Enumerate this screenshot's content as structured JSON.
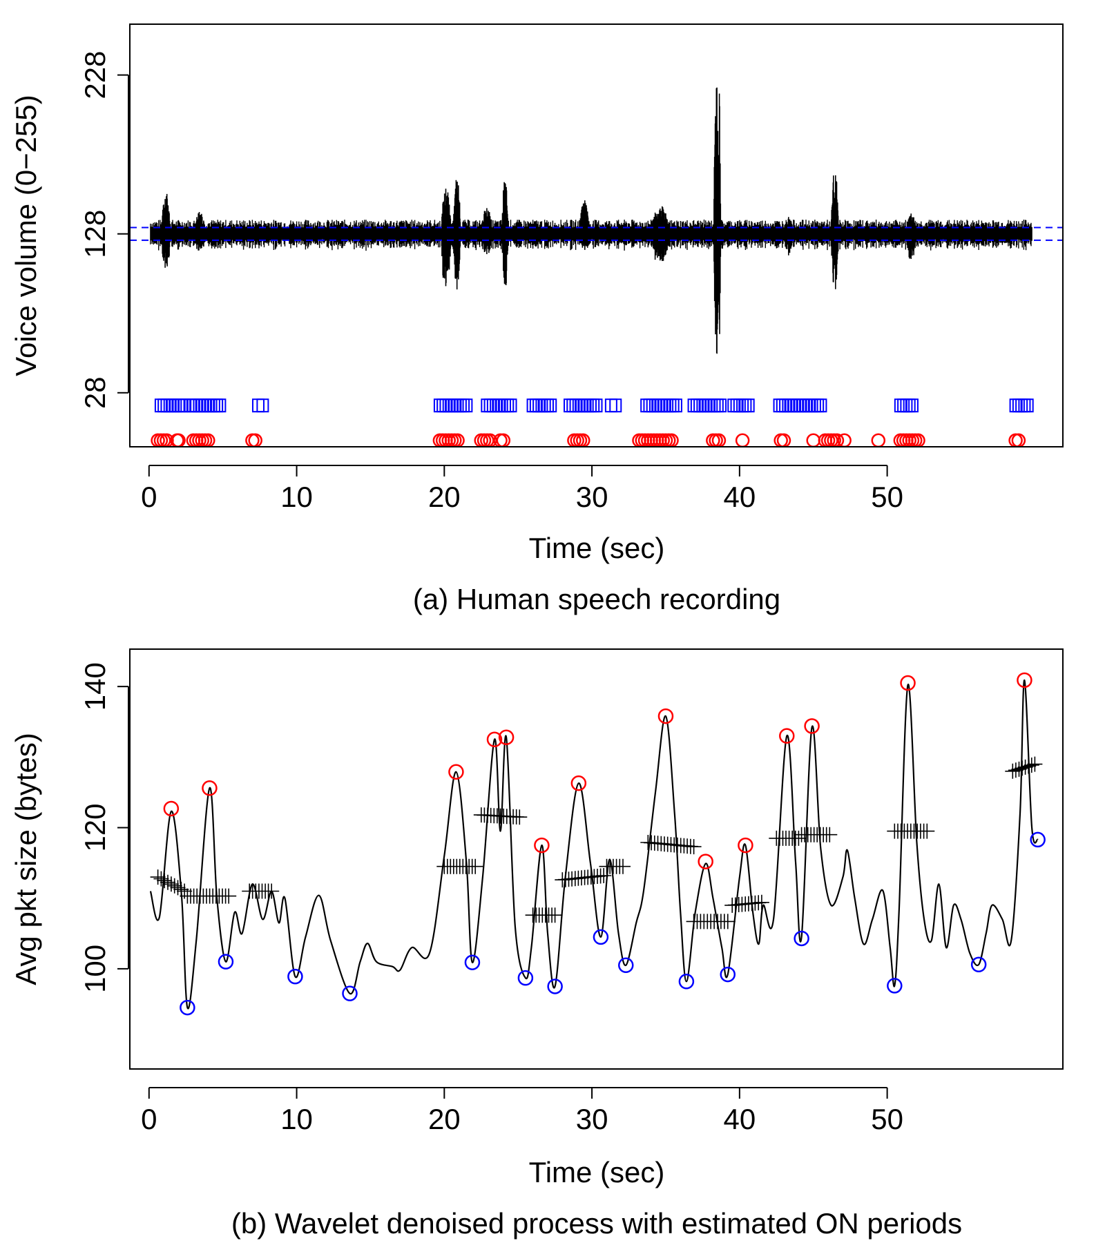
{
  "colors": {
    "trace": "#000000",
    "onset": "#0000ff",
    "peak": "#ff0000",
    "trough": "#0000ff",
    "threshold": "#0000ff"
  },
  "chart_data": [
    {
      "id": "a",
      "type": "line",
      "caption": "(a) Human speech recording",
      "xlabel": "Time (sec)",
      "ylabel": "Voice volume (0−255)",
      "xlim": [
        -1.3,
        61.9
      ],
      "ylim": [
        -6,
        260
      ],
      "xticks": [
        0,
        10,
        20,
        30,
        40,
        50
      ],
      "yticks": [
        28,
        128,
        228
      ],
      "threshold_lines": [
        124,
        132
      ],
      "bursts": [
        {
          "t": 0.85,
          "dur": 0.7,
          "up": 155,
          "down": 98
        },
        {
          "t": 3.0,
          "dur": 1.0,
          "up": 142,
          "down": 114
        },
        {
          "t": 7.1,
          "dur": 0.6,
          "up": 135,
          "down": 121
        },
        {
          "t": 19.8,
          "dur": 0.8,
          "up": 159,
          "down": 85
        },
        {
          "t": 20.6,
          "dur": 0.6,
          "up": 165,
          "down": 82
        },
        {
          "t": 22.5,
          "dur": 0.9,
          "up": 145,
          "down": 112
        },
        {
          "t": 23.9,
          "dur": 0.5,
          "up": 163,
          "down": 87
        },
        {
          "t": 29.1,
          "dur": 0.9,
          "up": 150,
          "down": 116
        },
        {
          "t": 34.0,
          "dur": 1.5,
          "up": 146,
          "down": 106
        },
        {
          "t": 38.25,
          "dur": 0.4,
          "up": 235,
          "down": 28
        },
        {
          "t": 38.55,
          "dur": 0.2,
          "up": 218,
          "down": 50
        },
        {
          "t": 43.0,
          "dur": 0.8,
          "up": 139,
          "down": 113
        },
        {
          "t": 46.2,
          "dur": 0.6,
          "up": 169,
          "down": 88
        },
        {
          "t": 51.3,
          "dur": 0.8,
          "up": 141,
          "down": 108
        }
      ],
      "series": [
        {
          "name": "",
          "marker": "square",
          "color": "#0000ff",
          "y": 20,
          "x": [
            0.8,
            1.0,
            1.2,
            1.4,
            1.6,
            1.8,
            2.0,
            2.2,
            2.4,
            2.8,
            3.0,
            3.2,
            3.4,
            3.6,
            3.8,
            4.0,
            4.2,
            4.4,
            4.6,
            4.8,
            7.4,
            7.7,
            19.7,
            19.9,
            20.1,
            20.3,
            20.5,
            20.7,
            20.9,
            21.1,
            21.3,
            21.5,
            22.9,
            23.1,
            23.3,
            23.5,
            23.7,
            23.9,
            24.1,
            24.3,
            24.5,
            26.0,
            26.2,
            26.4,
            26.6,
            26.8,
            27.0,
            27.2,
            28.5,
            28.7,
            28.9,
            29.1,
            29.3,
            29.5,
            29.7,
            29.9,
            30.1,
            30.3,
            31.3,
            31.6,
            33.7,
            33.9,
            34.1,
            34.3,
            34.5,
            34.7,
            34.9,
            35.1,
            35.3,
            35.5,
            35.7,
            36.9,
            37.1,
            37.3,
            37.5,
            37.7,
            37.9,
            38.1,
            38.3,
            38.5,
            38.7,
            39.6,
            39.8,
            40.0,
            40.2,
            40.4,
            40.6,
            42.7,
            42.9,
            43.1,
            43.3,
            43.5,
            43.7,
            43.9,
            44.1,
            44.3,
            44.5,
            44.7,
            44.9,
            45.1,
            45.3,
            45.5,
            50.9,
            51.1,
            51.3,
            51.5,
            51.7,
            58.7,
            58.9,
            59.1,
            59.3,
            59.5
          ]
        },
        {
          "name": "",
          "marker": "circle",
          "color": "#ff0000",
          "y": -2,
          "x": [
            0.6,
            0.8,
            1.0,
            1.2,
            1.9,
            2.0,
            3.0,
            3.2,
            3.4,
            3.6,
            3.8,
            4.0,
            7.0,
            7.2,
            19.7,
            19.9,
            20.1,
            20.3,
            20.5,
            20.7,
            20.9,
            22.5,
            22.7,
            22.9,
            23.1,
            23.8,
            24.0,
            28.8,
            29.0,
            29.2,
            29.4,
            33.2,
            33.4,
            33.6,
            33.8,
            34.0,
            34.2,
            34.4,
            34.6,
            34.8,
            35.0,
            35.2,
            35.4,
            38.2,
            38.4,
            38.6,
            40.2,
            42.8,
            43.0,
            45.0,
            45.8,
            46.0,
            46.2,
            46.4,
            46.6,
            47.1,
            49.4,
            50.9,
            51.1,
            51.3,
            51.5,
            51.7,
            51.9,
            52.1,
            58.7,
            58.9
          ]
        }
      ]
    },
    {
      "id": "b",
      "type": "line",
      "caption": "(b) Wavelet denoised process with estimated ON periods",
      "xlabel": "Time (sec)",
      "ylabel": "Avg pkt size (bytes)",
      "xlim": [
        -1.3,
        61.9
      ],
      "ylim": [
        85.8,
        145.3
      ],
      "xticks": [
        0,
        10,
        20,
        30,
        40,
        50
      ],
      "yticks": [
        100,
        120,
        140
      ],
      "series": [
        {
          "name": "",
          "kind": "line",
          "color": "#000000",
          "points": [
            [
              0.1,
              111
            ],
            [
              0.7,
              107.3
            ],
            [
              1.5,
              122.3
            ],
            [
              2.2,
              110.5
            ],
            [
              2.6,
              94.5
            ],
            [
              3.2,
              104
            ],
            [
              4.1,
              125.6
            ],
            [
              4.6,
              110
            ],
            [
              5.2,
              101
            ],
            [
              5.8,
              108
            ],
            [
              6.3,
              105
            ],
            [
              7.0,
              112
            ],
            [
              7.7,
              107
            ],
            [
              8.3,
              111
            ],
            [
              8.8,
              106.5
            ],
            [
              9.2,
              110
            ],
            [
              9.9,
              98.9
            ],
            [
              10.6,
              104.5
            ],
            [
              11.5,
              110.4
            ],
            [
              12.3,
              104
            ],
            [
              13.6,
              96.5
            ],
            [
              14.3,
              101
            ],
            [
              14.8,
              103.6
            ],
            [
              15.4,
              101
            ],
            [
              16.5,
              100.3
            ],
            [
              17.0,
              99.8
            ],
            [
              17.8,
              103
            ],
            [
              19.0,
              102.2
            ],
            [
              20.0,
              116
            ],
            [
              20.8,
              127.9
            ],
            [
              21.5,
              115
            ],
            [
              21.9,
              100.9
            ],
            [
              22.6,
              113
            ],
            [
              23.4,
              132.5
            ],
            [
              23.8,
              119.5
            ],
            [
              24.2,
              132.8
            ],
            [
              24.8,
              106
            ],
            [
              25.5,
              98.7
            ],
            [
              25.9,
              103
            ],
            [
              26.6,
              117.5
            ],
            [
              27.0,
              105
            ],
            [
              27.5,
              97.5
            ],
            [
              28.2,
              113
            ],
            [
              29.1,
              126.3
            ],
            [
              29.9,
              115
            ],
            [
              30.6,
              104.5
            ],
            [
              31.2,
              115.5
            ],
            [
              31.8,
              105
            ],
            [
              32.3,
              100.5
            ],
            [
              33.0,
              106.5
            ],
            [
              33.5,
              111
            ],
            [
              34.3,
              125
            ],
            [
              35.0,
              135.8
            ],
            [
              35.6,
              122
            ],
            [
              36.0,
              108
            ],
            [
              36.4,
              98.2
            ],
            [
              37.0,
              108
            ],
            [
              37.7,
              114.9
            ],
            [
              38.2,
              110
            ],
            [
              38.8,
              103
            ],
            [
              39.2,
              99.2
            ],
            [
              40.0,
              113
            ],
            [
              40.4,
              117.5
            ],
            [
              40.9,
              108
            ],
            [
              41.3,
              103.5
            ],
            [
              41.6,
              109
            ],
            [
              42.3,
              107
            ],
            [
              43.2,
              133
            ],
            [
              43.8,
              115
            ],
            [
              44.2,
              104.5
            ],
            [
              44.9,
              134.2
            ],
            [
              45.5,
              117
            ],
            [
              46.2,
              109
            ],
            [
              47.0,
              113
            ],
            [
              47.3,
              116.8
            ],
            [
              47.8,
              110
            ],
            [
              48.4,
              103.5
            ],
            [
              49.0,
              107
            ],
            [
              49.7,
              111.1
            ],
            [
              50.2,
              103
            ],
            [
              50.5,
              97.6
            ],
            [
              50.8,
              108
            ],
            [
              51.4,
              140.2
            ],
            [
              52.0,
              118
            ],
            [
              52.5,
              107
            ],
            [
              53.0,
              104
            ],
            [
              53.5,
              112
            ],
            [
              54.0,
              103
            ],
            [
              54.5,
              109
            ],
            [
              55.0,
              107
            ],
            [
              55.6,
              102.2
            ],
            [
              56.2,
              100.6
            ],
            [
              56.7,
              105
            ],
            [
              57.1,
              109
            ],
            [
              57.8,
              107
            ],
            [
              58.4,
              104
            ],
            [
              59.0,
              122
            ],
            [
              59.3,
              140.9
            ],
            [
              59.8,
              120
            ],
            [
              60.2,
              118.3
            ]
          ]
        },
        {
          "name": "",
          "kind": "peaks",
          "marker": "circle",
          "color": "#ff0000",
          "points": [
            [
              1.5,
              122.7
            ],
            [
              4.1,
              125.6
            ],
            [
              20.8,
              127.9
            ],
            [
              23.4,
              132.5
            ],
            [
              24.2,
              132.8
            ],
            [
              26.6,
              117.5
            ],
            [
              29.1,
              126.3
            ],
            [
              35.0,
              135.8
            ],
            [
              37.7,
              115.2
            ],
            [
              40.4,
              117.5
            ],
            [
              43.2,
              133.0
            ],
            [
              44.9,
              134.4
            ],
            [
              51.4,
              140.5
            ],
            [
              59.3,
              140.9
            ]
          ]
        },
        {
          "name": "",
          "kind": "troughs",
          "marker": "circle",
          "color": "#0000ff",
          "points": [
            [
              2.6,
              94.5
            ],
            [
              5.2,
              101.0
            ],
            [
              9.9,
              98.9
            ],
            [
              13.6,
              96.5
            ],
            [
              21.9,
              100.9
            ],
            [
              25.5,
              98.7
            ],
            [
              27.5,
              97.5
            ],
            [
              30.6,
              104.5
            ],
            [
              32.3,
              100.5
            ],
            [
              36.4,
              98.2
            ],
            [
              39.2,
              99.2
            ],
            [
              44.2,
              104.3
            ],
            [
              50.5,
              97.6
            ],
            [
              56.2,
              100.6
            ],
            [
              60.2,
              118.3
            ]
          ]
        },
        {
          "name": "",
          "kind": "on-periods",
          "marker": "plus",
          "color": "#000000",
          "segments": [
            [
              0.6,
              2.4,
              113.0,
              111.0
            ],
            [
              2.6,
              5.4,
              110.3,
              110.3
            ],
            [
              6.8,
              8.3,
              111.0,
              111.0
            ],
            [
              20.0,
              22.1,
              114.5,
              114.5
            ],
            [
              22.5,
              25.1,
              121.8,
              121.5
            ],
            [
              26.0,
              27.5,
              107.6,
              107.6
            ],
            [
              28.0,
              30.8,
              112.6,
              113.2
            ],
            [
              31.0,
              32.1,
              114.5,
              114.5
            ],
            [
              33.8,
              36.9,
              117.9,
              117.3
            ],
            [
              36.9,
              39.2,
              106.7,
              106.7
            ],
            [
              39.5,
              41.5,
              109.0,
              109.4
            ],
            [
              42.5,
              44.0,
              118.5,
              118.5
            ],
            [
              44.2,
              46.1,
              119.0,
              119.0
            ],
            [
              50.5,
              52.7,
              119.5,
              119.5
            ],
            [
              58.5,
              60.0,
              128.0,
              129.0
            ]
          ]
        }
      ]
    }
  ]
}
